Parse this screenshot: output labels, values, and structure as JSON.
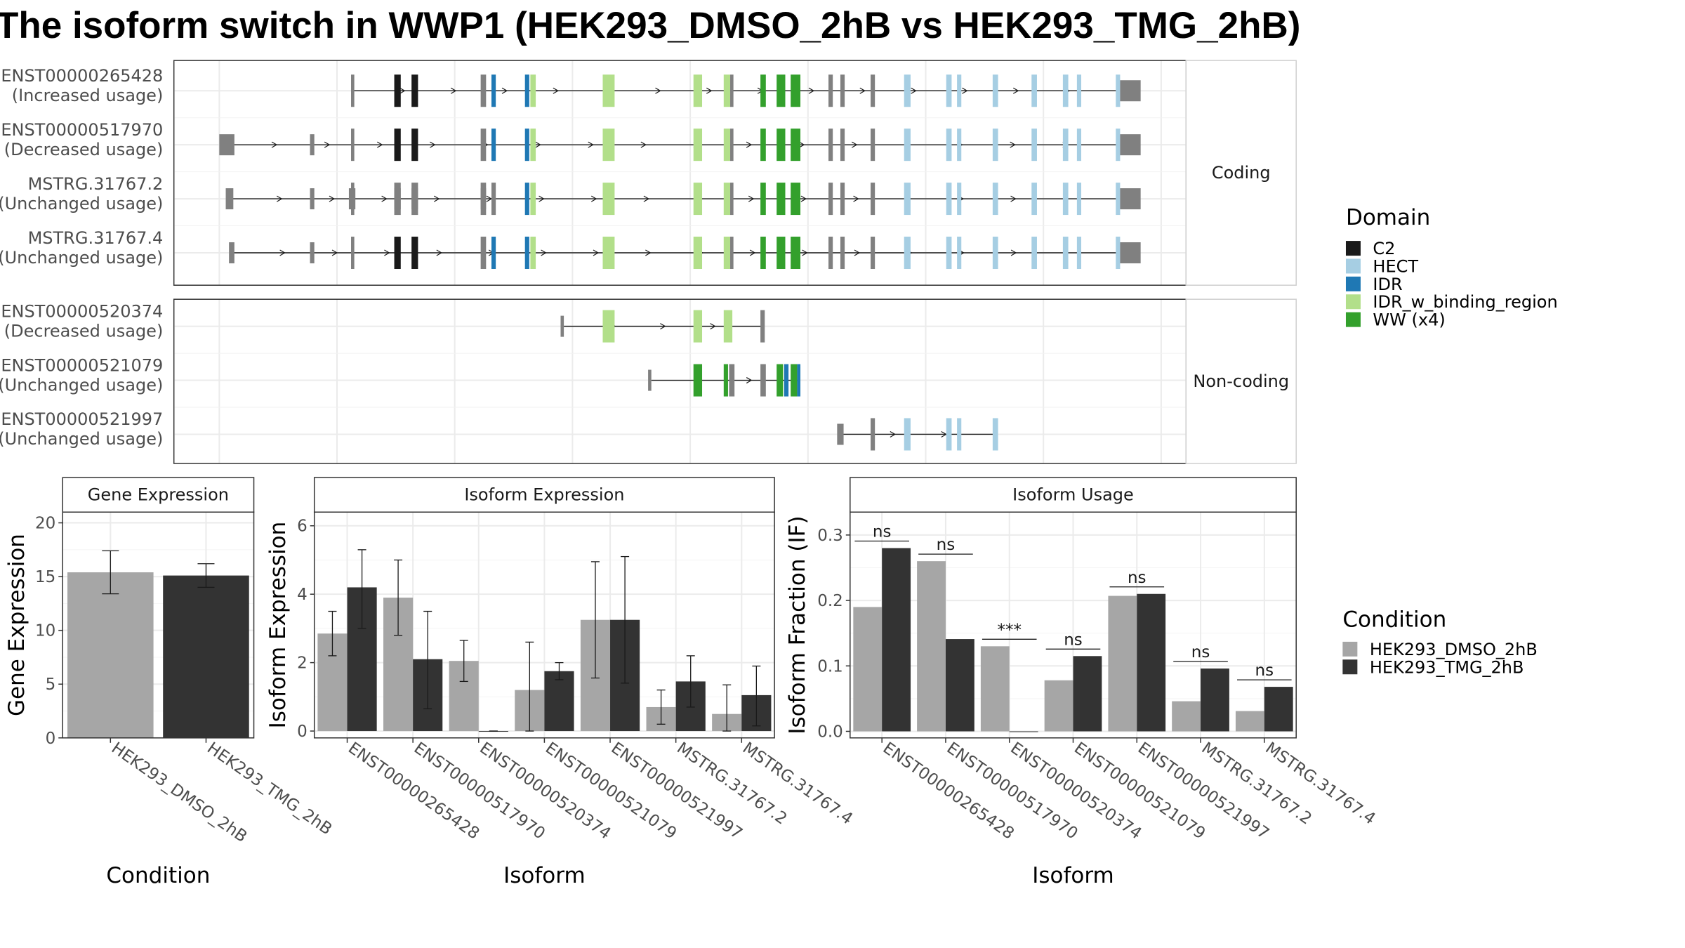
{
  "title": "The isoform switch in WWP1 (HEK293_DMSO_2hB vs HEK293_TMG_2hB)",
  "domain_legend": {
    "title": "Domain",
    "items": [
      {
        "name": "C2",
        "color": "#1a1a1a"
      },
      {
        "name": "HECT",
        "color": "#a6cee3"
      },
      {
        "name": "IDR",
        "color": "#1f78b4"
      },
      {
        "name": "IDR_w_binding_region",
        "color": "#b2df8a"
      },
      {
        "name": "WW (x4)",
        "color": "#33a02c"
      }
    ]
  },
  "condition_legend": {
    "title": "Condition",
    "items": [
      {
        "name": "HEK293_DMSO_2hB",
        "color": "#a6a6a6"
      },
      {
        "name": "HEK293_TMG_2hB",
        "color": "#333333"
      }
    ]
  },
  "structure": {
    "coding_label": "Coding",
    "noncoding_label": "Non-coding",
    "transcripts_coding": [
      {
        "id": "ENST00000265428",
        "usage": "(Increased usage)"
      },
      {
        "id": "ENST00000517970",
        "usage": "(Decreased usage)"
      },
      {
        "id": "MSTRG.31767.2",
        "usage": "(Unchanged usage)"
      },
      {
        "id": "MSTRG.31767.4",
        "usage": "(Unchanged usage)"
      }
    ],
    "transcripts_noncoding": [
      {
        "id": "ENST00000520374",
        "usage": "(Decreased usage)"
      },
      {
        "id": "ENST00000521079",
        "usage": "(Unchanged usage)"
      },
      {
        "id": "ENST00000521997",
        "usage": "(Unchanged usage)"
      }
    ]
  },
  "chart_data": [
    {
      "type": "bar",
      "title": "Gene Expression",
      "xlabel": "Condition",
      "ylabel": "Gene Expression",
      "categories": [
        "HEK293_DMSO_2hB",
        "HEK293_TMG_2hB"
      ],
      "values": [
        15.4,
        15.1
      ],
      "error_low": [
        13.4,
        14.0
      ],
      "error_high": [
        17.4,
        16.2
      ],
      "ylim": [
        0,
        21
      ],
      "yticks": [
        0,
        5,
        10,
        15,
        20
      ]
    },
    {
      "type": "bar",
      "title": "Isoform Expression",
      "xlabel": "Isoform",
      "ylabel": "Isoform Expression",
      "categories": [
        "ENST00000265428",
        "ENST00000517970",
        "ENST00000520374",
        "ENST00000521079",
        "ENST00000521997",
        "MSTRG.31767.2",
        "MSTRG.31767.4"
      ],
      "series": [
        {
          "name": "HEK293_DMSO_2hB",
          "values": [
            2.85,
            3.9,
            2.05,
            1.2,
            3.25,
            0.7,
            0.5
          ],
          "error_low": [
            2.2,
            2.8,
            1.45,
            0.0,
            1.55,
            0.2,
            0.0
          ],
          "error_high": [
            3.5,
            5.0,
            2.65,
            2.6,
            4.95,
            1.2,
            1.35
          ]
        },
        {
          "name": "HEK293_TMG_2hB",
          "values": [
            4.2,
            2.1,
            0.0,
            1.75,
            3.25,
            1.45,
            1.05
          ],
          "error_low": [
            3.0,
            0.65,
            0.0,
            1.5,
            1.4,
            0.7,
            0.15
          ],
          "error_high": [
            5.3,
            3.5,
            0.0,
            2.0,
            5.1,
            2.2,
            1.9
          ]
        }
      ],
      "ylim": [
        -0.2,
        6.4
      ],
      "yticks": [
        0,
        2,
        4,
        6
      ]
    },
    {
      "type": "bar",
      "title": "Isoform Usage",
      "xlabel": "Isoform",
      "ylabel": "Isoform Fraction (IF)",
      "categories": [
        "ENST00000265428",
        "ENST00000517970",
        "ENST00000520374",
        "ENST00000521079",
        "ENST00000521997",
        "MSTRG.31767.2",
        "MSTRG.31767.4"
      ],
      "series": [
        {
          "name": "HEK293_DMSO_2hB",
          "values": [
            0.19,
            0.26,
            0.13,
            0.078,
            0.207,
            0.046,
            0.031
          ]
        },
        {
          "name": "HEK293_TMG_2hB",
          "values": [
            0.28,
            0.141,
            0.0,
            0.115,
            0.21,
            0.096,
            0.068
          ]
        }
      ],
      "significance": [
        "ns",
        "ns",
        "***",
        "ns",
        "ns",
        "ns",
        "ns"
      ],
      "ylim": [
        -0.01,
        0.335
      ],
      "yticks": [
        0.0,
        0.1,
        0.2,
        0.3
      ],
      "ytick_labels": [
        "0.0",
        "0.1",
        "0.2",
        "0.3"
      ]
    }
  ]
}
